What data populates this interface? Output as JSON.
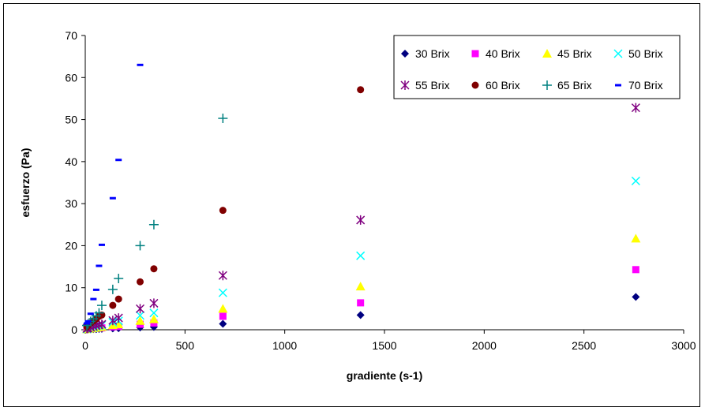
{
  "chart_data": {
    "type": "scatter",
    "title": "",
    "xlabel": "gradiente (s-1)",
    "ylabel": "esfuerzo (Pa)",
    "xlim": [
      0,
      3000
    ],
    "ylim": [
      0,
      70
    ],
    "xticks": [
      0,
      500,
      1000,
      1500,
      2000,
      2500,
      3000
    ],
    "yticks": [
      0,
      10,
      20,
      30,
      40,
      50,
      60,
      70
    ],
    "grid": "none",
    "legend_position": "top-right",
    "series": [
      {
        "name": "30 Brix",
        "color": "#000080",
        "marker": "diamond",
        "x": [
          8,
          14,
          27,
          41,
          55,
          69,
          83,
          138,
          167,
          275,
          344,
          690,
          1380,
          2760
        ],
        "y": [
          0.05,
          0.08,
          0.1,
          0.13,
          0.15,
          0.18,
          0.2,
          0.3,
          0.35,
          0.55,
          0.65,
          1.4,
          3.5,
          7.8
        ]
      },
      {
        "name": "40 Brix",
        "color": "#ff00ff",
        "marker": "square",
        "x": [
          8,
          14,
          27,
          41,
          55,
          69,
          83,
          138,
          167,
          275,
          344,
          690,
          1380,
          2760
        ],
        "y": [
          0.1,
          0.15,
          0.2,
          0.3,
          0.35,
          0.4,
          0.45,
          0.7,
          0.8,
          1.3,
          1.6,
          3.2,
          6.4,
          14.3
        ]
      },
      {
        "name": "45 Brix",
        "color": "#ffff00",
        "marker": "triangle",
        "x": [
          8,
          14,
          27,
          41,
          55,
          69,
          83,
          138,
          167,
          275,
          344,
          690,
          1380,
          2760
        ],
        "y": [
          0.15,
          0.2,
          0.3,
          0.4,
          0.5,
          0.6,
          0.7,
          1.1,
          1.3,
          2.1,
          2.5,
          5.0,
          10.3,
          21.7
        ]
      },
      {
        "name": "50 Brix",
        "color": "#00ffff",
        "marker": "x",
        "x": [
          8,
          14,
          27,
          41,
          55,
          69,
          83,
          138,
          167,
          275,
          344,
          690,
          1380,
          2760
        ],
        "y": [
          0.2,
          0.3,
          0.5,
          0.6,
          0.8,
          0.9,
          1.1,
          1.8,
          2.1,
          3.4,
          4.0,
          8.8,
          17.6,
          35.4
        ]
      },
      {
        "name": "55 Brix",
        "color": "#800080",
        "marker": "asterisk",
        "x": [
          8,
          14,
          27,
          41,
          55,
          69,
          83,
          138,
          167,
          275,
          344,
          690,
          1380,
          2760
        ],
        "y": [
          0.3,
          0.4,
          0.6,
          0.8,
          1.0,
          1.2,
          1.3,
          2.2,
          2.8,
          5.0,
          6.3,
          12.9,
          26.1,
          52.8
        ]
      },
      {
        "name": "60 Brix",
        "color": "#800000",
        "marker": "circle",
        "x": [
          8,
          14,
          27,
          41,
          55,
          69,
          83,
          138,
          167,
          275,
          344,
          690,
          1380
        ],
        "y": [
          0.7,
          1.1,
          1.6,
          2.1,
          2.6,
          3.2,
          3.5,
          5.8,
          7.3,
          11.4,
          14.5,
          28.4,
          57.1
        ]
      },
      {
        "name": "65 Brix",
        "color": "#008080",
        "marker": "plus",
        "x": [
          8,
          14,
          27,
          41,
          55,
          69,
          83,
          138,
          167,
          275,
          344,
          690
        ],
        "y": [
          1.0,
          1.4,
          2.0,
          2.6,
          3.3,
          4.0,
          5.8,
          9.6,
          12.2,
          20.0,
          25.0,
          50.3
        ]
      },
      {
        "name": "70 Brix",
        "color": "#0000ff",
        "marker": "dash",
        "x": [
          8,
          14,
          27,
          41,
          55,
          69,
          83,
          138,
          167,
          275
        ],
        "y": [
          1.5,
          2.0,
          3.8,
          7.3,
          9.5,
          15.2,
          20.2,
          31.3,
          40.4,
          63.0
        ]
      }
    ]
  }
}
